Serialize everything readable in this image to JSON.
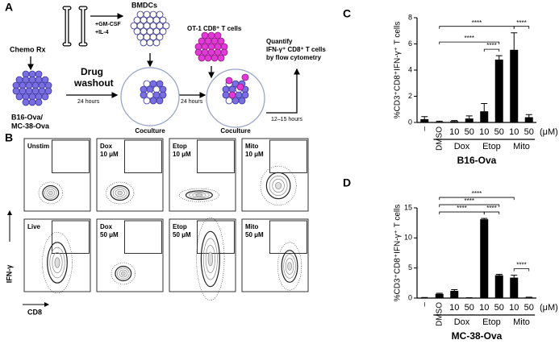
{
  "panels": {
    "a": "A",
    "b": "B",
    "c": "C",
    "d": "D"
  },
  "schematic": {
    "chemo": "Chemo Rx",
    "tumor": [
      "B16-Ova/",
      "MC-38-Ova"
    ],
    "wash_time": "24 hours",
    "washout": [
      "Drug",
      "washout"
    ],
    "bmdc": "BMDCs",
    "cytokines": [
      "+GM-CSF",
      "+IL-4"
    ],
    "tcells": "OT-1 CD8⁺ T cells",
    "coculture_time": "24 hours",
    "coculture": "Coculture",
    "readout_time": "12–15 hours",
    "readout": [
      "Quantify",
      "IFN-γ⁺ CD8⁺ T cells",
      "by flow cytometry"
    ]
  },
  "flow": {
    "y_axis": "IFN-γ",
    "x_axis": "CD8",
    "plots": [
      [
        "Unstim"
      ],
      [
        "Dox",
        "10 μM"
      ],
      [
        "Etop",
        "10 μM"
      ],
      [
        "Mito",
        "10 μM"
      ],
      [
        "Live"
      ],
      [
        "Dox",
        "50 μM"
      ],
      [
        "Etop",
        "50 μM"
      ],
      [
        "Mito",
        "50 μM"
      ]
    ]
  },
  "chart_data": [
    {
      "type": "bar",
      "title": "B16-Ova",
      "y_label": "%CD3⁺CD8⁺IFN-γ⁺ T cells",
      "categories": [
        "–",
        "DMSO",
        "10",
        "50",
        "10",
        "50",
        "10",
        "50"
      ],
      "values": [
        0.25,
        0.05,
        0.1,
        0.3,
        0.85,
        4.8,
        5.55,
        0.4
      ],
      "errors": [
        0.2,
        0.05,
        0.05,
        0.2,
        0.6,
        0.3,
        1.3,
        0.2
      ],
      "color": "#000000",
      "ylim": [
        0,
        8
      ],
      "yticks": [
        0,
        2,
        4,
        6,
        8
      ],
      "unit": "(μM)",
      "groups": [
        {
          "label": "Dox",
          "from": 2,
          "to": 3
        },
        {
          "label": "Etop",
          "from": 4,
          "to": 5
        },
        {
          "label": "Mito",
          "from": 6,
          "to": 7
        }
      ],
      "annotations": [
        {
          "from": 1,
          "to": 6,
          "label": "****"
        },
        {
          "from": 1,
          "to": 5,
          "label": "****"
        },
        {
          "from": 4,
          "to": 5,
          "label": "****"
        },
        {
          "from": 6,
          "to": 7,
          "label": "****"
        }
      ]
    },
    {
      "type": "bar",
      "title": "MC-38-Ova",
      "y_label": "%CD3⁺CD8⁺IFN-γ⁺ T cells",
      "categories": [
        "–",
        "DMSO",
        "10",
        "50",
        "10",
        "50",
        "10",
        "50"
      ],
      "values": [
        0.05,
        0.7,
        1.2,
        0.05,
        13.1,
        3.8,
        3.4,
        0.1
      ],
      "errors": [
        0.05,
        0.1,
        0.2,
        0.02,
        0.15,
        0.15,
        0.4,
        0.05
      ],
      "color": "#000000",
      "ylim": [
        0,
        15
      ],
      "yticks": [
        0,
        5,
        10,
        15
      ],
      "unit": "(μM)",
      "groups": [
        {
          "label": "Dox",
          "from": 2,
          "to": 3
        },
        {
          "label": "Etop",
          "from": 4,
          "to": 5
        },
        {
          "label": "Mito",
          "from": 6,
          "to": 7
        }
      ],
      "annotations": [
        {
          "from": 1,
          "to": 6,
          "label": "****"
        },
        {
          "from": 1,
          "to": 5,
          "label": "****"
        },
        {
          "from": 1,
          "to": 4,
          "label": "****"
        },
        {
          "from": 4,
          "to": 5,
          "label": "****"
        },
        {
          "from": 6,
          "to": 7,
          "label": "****"
        }
      ]
    }
  ]
}
